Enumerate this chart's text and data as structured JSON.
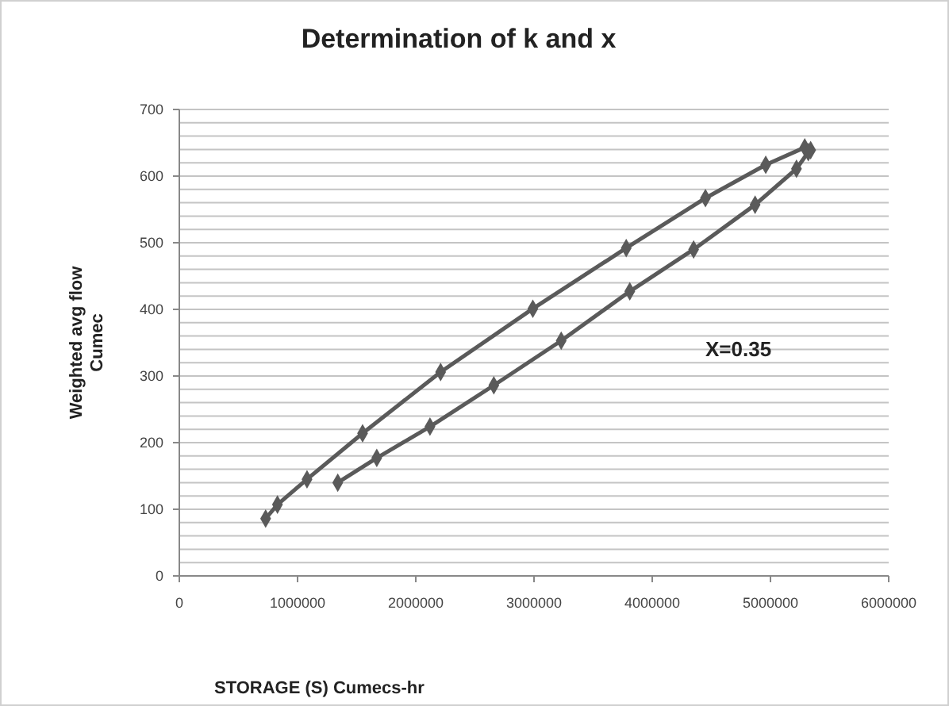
{
  "chart_data": {
    "type": "line",
    "title": "Determination of k and x",
    "xlabel": "STORAGE (S) Cumecs-hr",
    "ylabel": "Weighted avg flow\nCumec",
    "annotations": [
      "X=0.35"
    ],
    "series": [
      {
        "color": "#5a5a5a",
        "x": [
          730000,
          830000,
          1080000,
          1550000,
          2210000,
          2990000,
          3780000,
          4450000,
          4960000,
          5290000,
          5340000,
          5320000,
          5220000,
          4870000,
          4350000,
          3810000,
          3230000,
          2660000,
          2120000,
          1670000,
          1340000
        ],
        "values": [
          86,
          107,
          145,
          214,
          306,
          401,
          492,
          567,
          617,
          643,
          639,
          636,
          611,
          557,
          490,
          427,
          353,
          286,
          224,
          177,
          140
        ]
      }
    ],
    "xlim": [
      0,
      6000000
    ],
    "xticks": [
      0,
      1000000,
      2000000,
      3000000,
      4000000,
      5000000,
      6000000
    ],
    "ylim": [
      0,
      700
    ],
    "yticks": [
      0,
      {
        "value": 20,
        "label": null
      },
      {
        "value": 40,
        "label": null
      },
      {
        "value": 60,
        "label": null
      },
      {
        "value": 80,
        "label": null
      },
      100,
      {
        "value": 120,
        "label": null
      },
      {
        "value": 140,
        "label": null
      },
      {
        "value": 160,
        "label": null
      },
      {
        "value": 180,
        "label": null
      },
      200,
      {
        "value": 220,
        "label": null
      },
      {
        "value": 240,
        "label": null
      },
      {
        "value": 260,
        "label": null
      },
      {
        "value": 280,
        "label": null
      },
      300,
      {
        "value": 320,
        "label": null
      },
      {
        "value": 340,
        "label": null
      },
      {
        "value": 360,
        "label": null
      },
      {
        "value": 380,
        "label": null
      },
      400,
      {
        "value": 420,
        "label": null
      },
      {
        "value": 440,
        "label": null
      },
      {
        "value": 460,
        "label": null
      },
      {
        "value": 480,
        "label": null
      },
      500,
      {
        "value": 520,
        "label": null
      },
      {
        "value": 540,
        "label": null
      },
      {
        "value": 560,
        "label": null
      },
      {
        "value": 580,
        "label": null
      },
      600,
      {
        "value": 620,
        "label": null
      },
      {
        "value": 640,
        "label": null
      },
      {
        "value": 660,
        "label": null
      },
      {
        "value": 680,
        "label": null
      },
      700
    ],
    "grid": "y",
    "marker": "diamond",
    "line_style": "solid"
  }
}
